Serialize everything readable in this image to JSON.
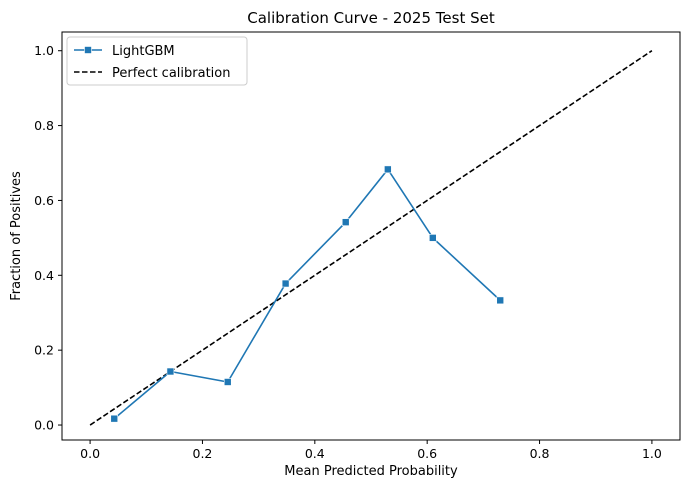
{
  "chart_data": {
    "type": "line",
    "title": "Calibration Curve - 2025 Test Set",
    "xlabel": "Mean Predicted Probability",
    "ylabel": "Fraction of Positives",
    "xlim": [
      -0.05,
      1.05
    ],
    "ylim": [
      -0.04,
      1.05
    ],
    "xticks": [
      0.0,
      0.2,
      0.4,
      0.6,
      0.8,
      1.0
    ],
    "xtick_labels": [
      "0.0",
      "0.2",
      "0.4",
      "0.6",
      "0.8",
      "1.0"
    ],
    "yticks": [
      0.0,
      0.2,
      0.4,
      0.6,
      0.8,
      1.0
    ],
    "ytick_labels": [
      "0.0",
      "0.2",
      "0.4",
      "0.6",
      "0.8",
      "1.0"
    ],
    "grid": false,
    "legend_position": "top-left",
    "series": [
      {
        "name": "LightGBM",
        "style": "solid",
        "marker": "square",
        "color": "#1f77b4",
        "x": [
          0.043,
          0.143,
          0.245,
          0.348,
          0.455,
          0.53,
          0.61,
          0.73
        ],
        "y": [
          0.017,
          0.143,
          0.115,
          0.378,
          0.542,
          0.683,
          0.5,
          0.333
        ]
      },
      {
        "name": "Perfect calibration",
        "style": "dashed",
        "marker": "none",
        "color": "#000000",
        "x": [
          0.0,
          1.0
        ],
        "y": [
          0.0,
          1.0
        ]
      }
    ]
  }
}
